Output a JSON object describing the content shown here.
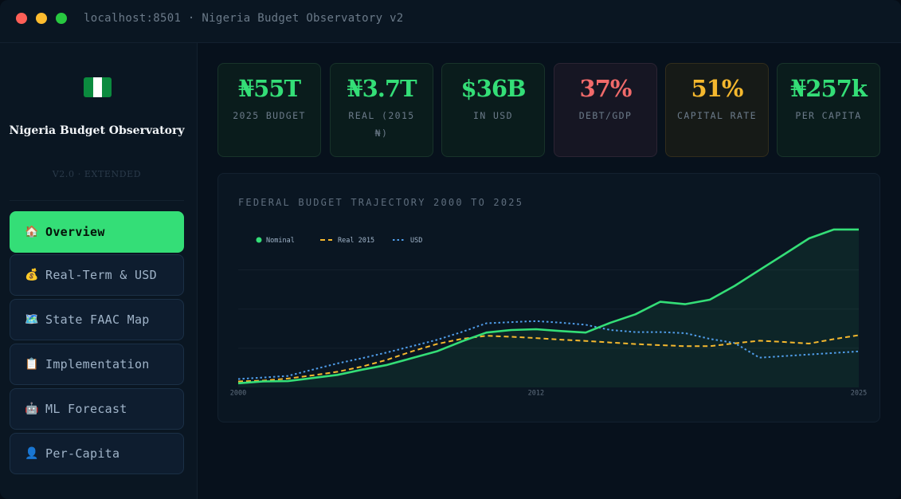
{
  "window": {
    "url": "localhost:8501 · Nigeria Budget Observatory v2"
  },
  "sidebar": {
    "title": "Nigeria Budget Observatory",
    "version": "V2.0 · EXTENDED",
    "items": [
      {
        "icon": "🏠",
        "label": "Overview",
        "active": true
      },
      {
        "icon": "💰",
        "label": "Real-Term & USD"
      },
      {
        "icon": "🗺️",
        "label": "State FAAC Map"
      },
      {
        "icon": "📋",
        "label": "Implementation"
      },
      {
        "icon": "🤖",
        "label": "ML Forecast"
      },
      {
        "icon": "👤",
        "label": "Per-Capita"
      }
    ]
  },
  "kpis": [
    {
      "value": "₦55T",
      "label": "2025 BUDGET",
      "color": "#34de77"
    },
    {
      "value": "₦3.7T",
      "label": "REAL (2015 ₦)",
      "color": "#34de77"
    },
    {
      "value": "$36B",
      "label": "IN USD",
      "color": "#34de77"
    },
    {
      "value": "37%",
      "label": "DEBT/GDP",
      "color": "#f06a6a"
    },
    {
      "value": "51%",
      "label": "CAPITAL RATE",
      "color": "#f5b82e"
    },
    {
      "value": "₦257k",
      "label": "PER CAPITA",
      "color": "#34de77"
    }
  ],
  "chart": {
    "title": "FEDERAL BUDGET TRAJECTORY 2000 TO 2025"
  },
  "chart_data": {
    "type": "line",
    "x": [
      2000,
      2001,
      2002,
      2003,
      2004,
      2005,
      2006,
      2007,
      2008,
      2009,
      2010,
      2011,
      2012,
      2013,
      2014,
      2015,
      2016,
      2017,
      2018,
      2019,
      2020,
      2021,
      2022,
      2023,
      2024,
      2025
    ],
    "x_ticks": [
      "2000",
      "2012",
      "2025"
    ],
    "grid": true,
    "legend_position": "top-left",
    "y_axis_labels_shown": false,
    "series": [
      {
        "name": "Nominal",
        "style": "solid",
        "color": "#34de77",
        "area": true,
        "values": [
          1.6,
          2.3,
          2.4,
          3.6,
          4.8,
          6.8,
          8.6,
          11.2,
          13.8,
          17.6,
          21.0,
          22.0,
          22.3,
          21.6,
          21.0,
          24.8,
          28.0,
          32.8,
          31.9,
          33.6,
          38.9,
          45.0,
          51.0,
          57.1,
          60.5,
          60.5
        ]
      },
      {
        "name": "Real 2015",
        "style": "dashed",
        "color": "#f5b82e",
        "values": [
          2.3,
          2.6,
          3.4,
          4.6,
          6.0,
          8.0,
          10.6,
          13.8,
          16.6,
          18.6,
          19.8,
          19.4,
          18.9,
          18.3,
          17.8,
          17.2,
          16.6,
          16.2,
          15.8,
          15.8,
          16.9,
          17.9,
          17.4,
          16.8,
          18.5,
          20.0
        ]
      },
      {
        "name": "USD",
        "style": "dotted",
        "color": "#4f9ce8",
        "values": [
          3.2,
          3.8,
          4.4,
          6.8,
          9.2,
          11.2,
          13.4,
          15.8,
          18.2,
          21.2,
          24.6,
          25.0,
          25.4,
          24.8,
          24.0,
          22.0,
          21.2,
          21.2,
          20.8,
          18.6,
          17.0,
          11.4,
          12.0,
          12.6,
          13.2,
          13.8
        ]
      }
    ]
  }
}
